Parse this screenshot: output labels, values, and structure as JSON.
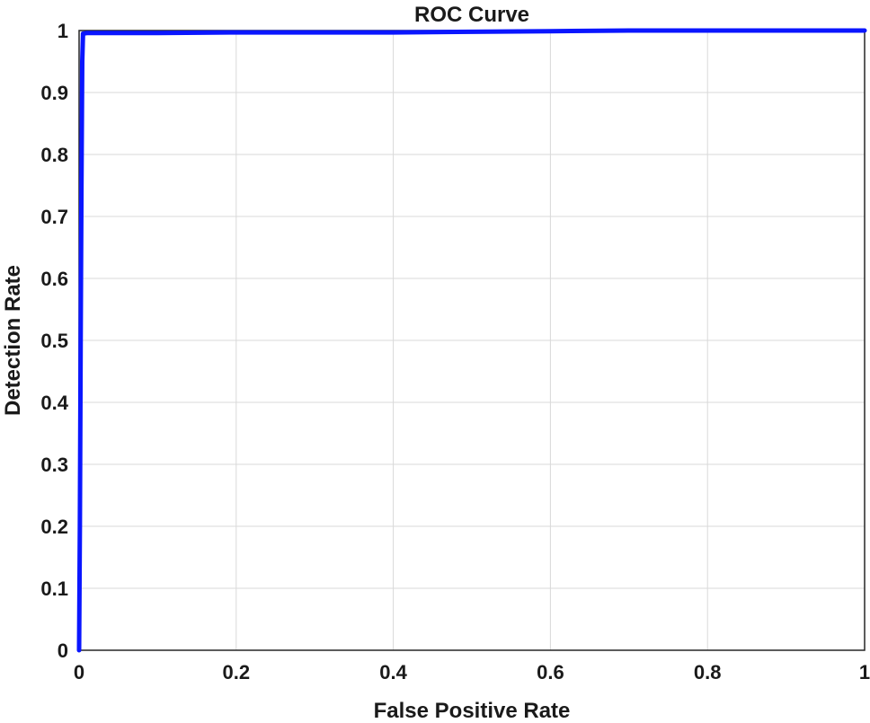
{
  "chart_data": {
    "type": "line",
    "title": "ROC Curve",
    "xlabel": "False Positive Rate",
    "ylabel": "Detection Rate",
    "xlim": [
      0,
      1
    ],
    "ylim": [
      0,
      1
    ],
    "xticks": [
      "0",
      "0.2",
      "0.4",
      "0.6",
      "0.8",
      "1"
    ],
    "yticks": [
      "0",
      "0.1",
      "0.2",
      "0.3",
      "0.4",
      "0.5",
      "0.6",
      "0.7",
      "0.8",
      "0.9",
      "1"
    ],
    "grid": true,
    "series": [
      {
        "color": "#0a16ff",
        "x": [
          0.0,
          0.001,
          0.002,
          0.003,
          0.004,
          0.005,
          0.01,
          0.1,
          0.2,
          0.3,
          0.4,
          0.5,
          0.6,
          0.7,
          0.8,
          0.9,
          1.0
        ],
        "y": [
          0.0,
          0.2,
          0.5,
          0.75,
          0.95,
          0.995,
          0.996,
          0.996,
          0.997,
          0.997,
          0.997,
          0.998,
          0.999,
          1.0,
          1.0,
          1.0,
          1.0
        ]
      }
    ]
  }
}
